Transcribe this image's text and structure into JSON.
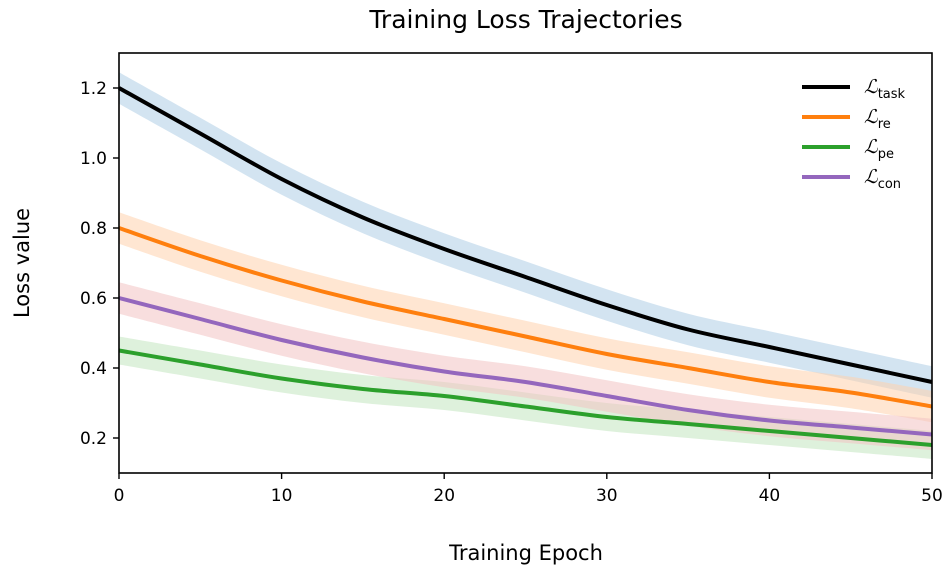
{
  "chart_data": {
    "type": "line",
    "title": "Training Loss Trajectories",
    "xlabel": "Training Epoch",
    "ylabel": "Loss value",
    "xlim": [
      0,
      50
    ],
    "ylim": [
      0.1,
      1.3
    ],
    "xticks": [
      0,
      10,
      20,
      30,
      40,
      50
    ],
    "xtick_labels": [
      "0",
      "10",
      "20",
      "30",
      "40",
      "50"
    ],
    "yticks": [
      0.2,
      0.4,
      0.6,
      0.8,
      1.0,
      1.2
    ],
    "ytick_labels": [
      "0.2",
      "0.4",
      "0.6",
      "0.8",
      "1.0",
      "1.2"
    ],
    "grid": false,
    "legend_position": "top-right",
    "x": [
      0,
      5,
      10,
      15,
      20,
      25,
      30,
      35,
      40,
      45,
      50
    ],
    "series": [
      {
        "name": "ℒ_task",
        "label_main": "ℒ",
        "label_sub": "task",
        "color": "#000000",
        "band_color": "#aecde6",
        "values": [
          1.2,
          1.07,
          0.94,
          0.83,
          0.74,
          0.66,
          0.58,
          0.51,
          0.46,
          0.41,
          0.36
        ],
        "band_halfwidth": 0.045
      },
      {
        "name": "ℒ_re",
        "label_main": "ℒ",
        "label_sub": "re",
        "color": "#ff7f0e",
        "band_color": "#ffd2ad",
        "values": [
          0.8,
          0.72,
          0.65,
          0.59,
          0.54,
          0.49,
          0.44,
          0.4,
          0.36,
          0.33,
          0.29
        ],
        "band_halfwidth": 0.045
      },
      {
        "name": "ℒ_pe",
        "label_main": "ℒ",
        "label_sub": "pe",
        "color": "#2ca02c",
        "band_color": "#c3e6bf",
        "values": [
          0.45,
          0.41,
          0.37,
          0.34,
          0.32,
          0.29,
          0.26,
          0.24,
          0.22,
          0.2,
          0.18
        ],
        "band_halfwidth": 0.04
      },
      {
        "name": "ℒ_con",
        "label_main": "ℒ",
        "label_sub": "con",
        "color": "#9467bd",
        "band_color": "#f2c3c3",
        "values": [
          0.6,
          0.54,
          0.48,
          0.43,
          0.39,
          0.36,
          0.32,
          0.28,
          0.25,
          0.23,
          0.21
        ],
        "band_halfwidth": 0.045
      }
    ]
  }
}
